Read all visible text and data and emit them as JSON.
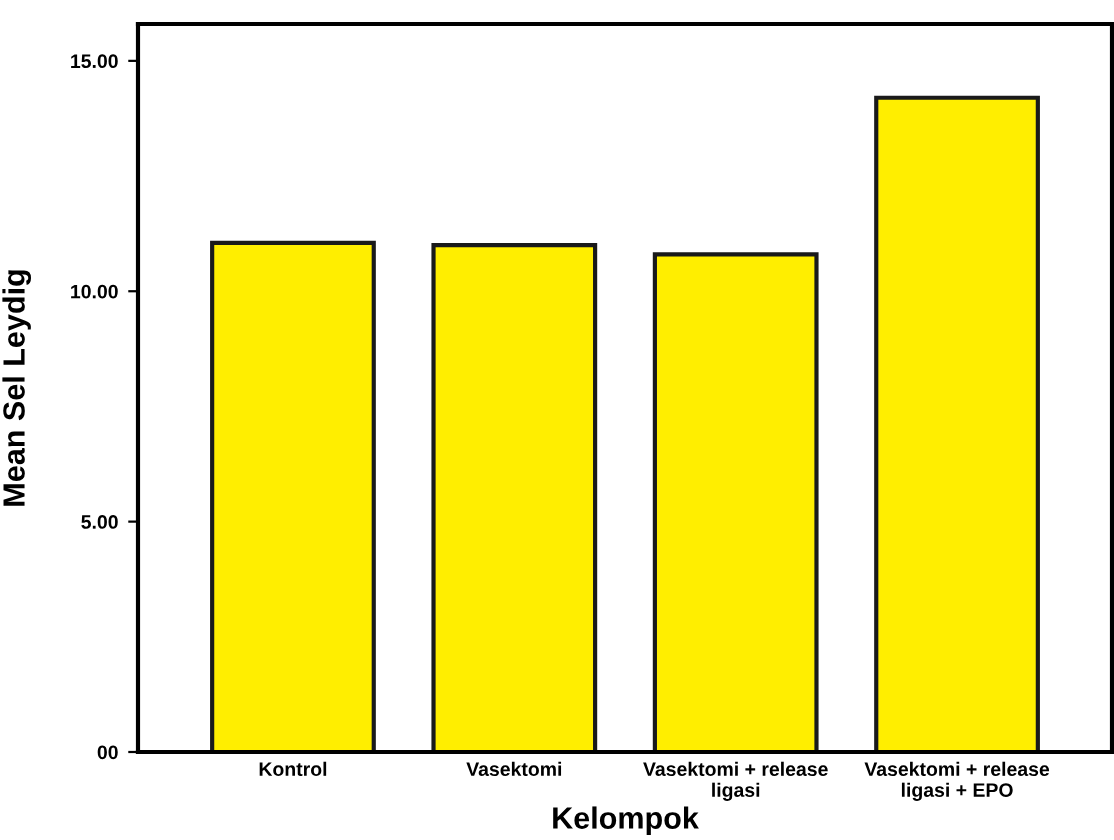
{
  "chart_data": {
    "type": "bar",
    "xlabel": "Kelompok",
    "ylabel": "Mean Sel Leydig",
    "categories": [
      "Kontrol",
      "Vasektomi",
      "Vasektomi + release\nligasi",
      "Vasektomi + release\nligasi + EPO"
    ],
    "values": [
      11.05,
      11.0,
      10.8,
      14.2
    ],
    "color": "#ffee00",
    "ylim": [
      0,
      15.8
    ],
    "yticks": [
      {
        "value": 0,
        "label": "00"
      },
      {
        "value": 5,
        "label": "5.00"
      },
      {
        "value": 10,
        "label": "10.00"
      },
      {
        "value": 15,
        "label": "15.00"
      }
    ],
    "grid": false
  }
}
